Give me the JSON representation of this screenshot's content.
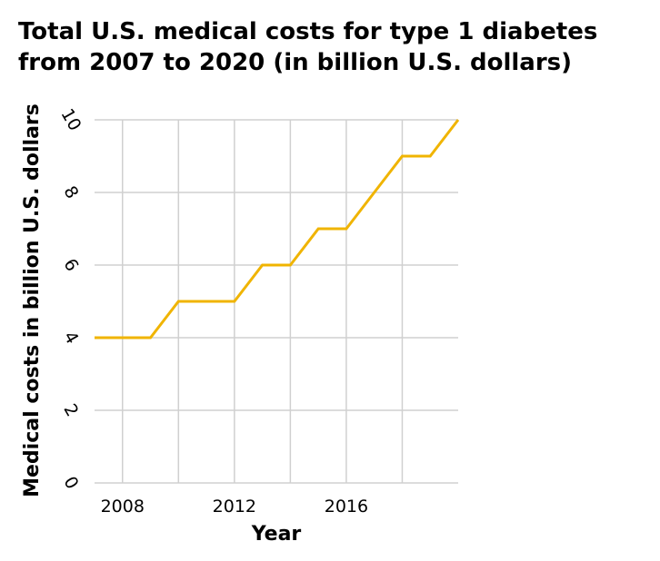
{
  "chart_data": {
    "type": "line",
    "title_lines": [
      "Total U.S. medical costs for type 1 diabetes",
      "from 2007 to 2020 (in billion U.S. dollars)"
    ],
    "xlabel": "Year",
    "ylabel": "Medical costs in billion U.S. dollars",
    "x": [
      2007,
      2008,
      2009,
      2010,
      2011,
      2012,
      2013,
      2014,
      2015,
      2016,
      2017,
      2018,
      2019,
      2020
    ],
    "series": [
      {
        "values": [
          4,
          4,
          4,
          5,
          5,
          5,
          6,
          6,
          7,
          7,
          8,
          9,
          9,
          10
        ]
      }
    ],
    "xlim": [
      2007,
      2020
    ],
    "ylim": [
      0,
      10
    ],
    "xticks": [
      2008,
      2012,
      2016
    ],
    "xtick_labels": [
      "2008",
      "2012",
      "2016"
    ],
    "yticks": [
      0,
      2,
      4,
      6,
      8,
      10
    ],
    "ytick_labels": [
      "0",
      "2",
      "4",
      "6",
      "8",
      "10"
    ],
    "x_gridlines": [
      2008,
      2010,
      2012,
      2014,
      2016,
      2018
    ],
    "grid": true,
    "line_color": "#f0b400",
    "grid_color": "#d0d0d0"
  }
}
